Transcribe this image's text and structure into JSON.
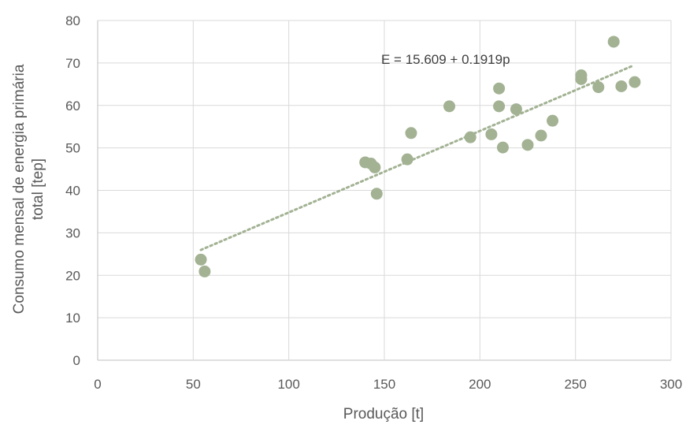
{
  "chart_data": {
    "type": "scatter",
    "title": "",
    "xlabel": "Produção [t]",
    "ylabel_lines": [
      "Consumo mensal de energia primária",
      "total [tep]"
    ],
    "xlim": [
      0,
      300
    ],
    "ylim": [
      0,
      80
    ],
    "x_ticks": [
      0,
      50,
      100,
      150,
      200,
      250,
      300
    ],
    "y_ticks": [
      0,
      10,
      20,
      30,
      40,
      50,
      60,
      70,
      80
    ],
    "grid": true,
    "legend": "none",
    "series": [
      {
        "points": [
          [
            54,
            23.7
          ],
          [
            56,
            20.9
          ],
          [
            140,
            46.6
          ],
          [
            143,
            46.3
          ],
          [
            145,
            45.4
          ],
          [
            146,
            39.2
          ],
          [
            162,
            47.3
          ],
          [
            164,
            53.5
          ],
          [
            184,
            59.8
          ],
          [
            195,
            52.5
          ],
          [
            206,
            53.2
          ],
          [
            210,
            59.8
          ],
          [
            210,
            64.0
          ],
          [
            212,
            50.1
          ],
          [
            219,
            59.1
          ],
          [
            225,
            50.7
          ],
          [
            232,
            52.9
          ],
          [
            238,
            56.4
          ],
          [
            253,
            66.2
          ],
          [
            253,
            67.1
          ],
          [
            262,
            64.3
          ],
          [
            270,
            75.0
          ],
          [
            274,
            64.5
          ],
          [
            281,
            65.5
          ]
        ],
        "color": "#a2b293"
      }
    ],
    "trendline": {
      "type": "linear",
      "intercept": 15.609,
      "slope": 0.1919,
      "x_range": [
        54,
        280
      ],
      "color": "#a2b293",
      "style": "dotted",
      "equation_label": "E = 15.609 + 0.1919p"
    }
  }
}
